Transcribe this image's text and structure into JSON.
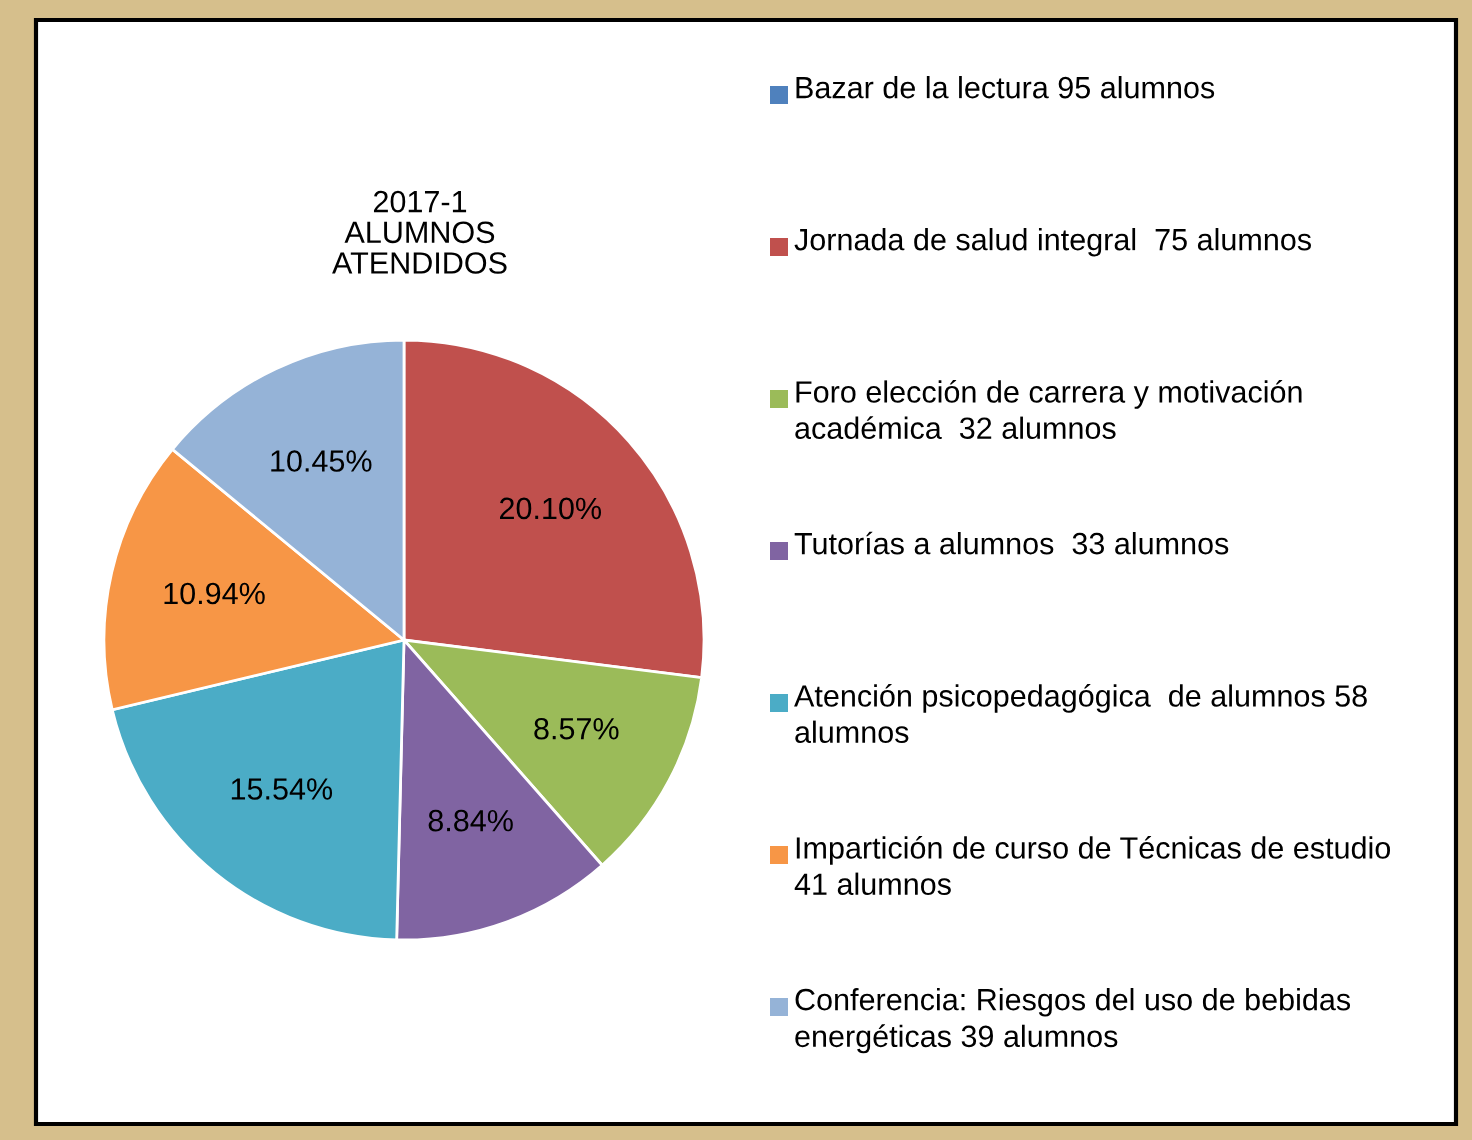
{
  "chart_data": {
    "type": "pie",
    "title": "2017-1\nALUMNOS\nATENDIDOS",
    "categories": [
      "Bazar de la lectura 95 alumnos",
      "Jornada de salud integral  75 alumnos",
      "Foro elección de carrera y motivación académica  32 alumnos",
      "Tutorías a alumnos  33 alumnos",
      "Atención psicopedagógica  de alumnos 58 alumnos",
      "Impartición de curso de Técnicas de estudio  41 alumnos",
      "Conferencia: Riesgos del uso de bebidas energéticas 39 alumnos"
    ],
    "values": [
      null,
      20.1,
      8.57,
      8.84,
      15.54,
      10.94,
      10.45
    ],
    "value_labels": [
      null,
      "20.10%",
      "8.57%",
      "8.84%",
      "15.54%",
      "10.94%",
      "10.45%"
    ],
    "colors": [
      "#4f81bd",
      "#c0504d",
      "#9bbb59",
      "#8064a2",
      "#4bacc6",
      "#f79646",
      "#95b3d7"
    ],
    "legend": "right"
  }
}
